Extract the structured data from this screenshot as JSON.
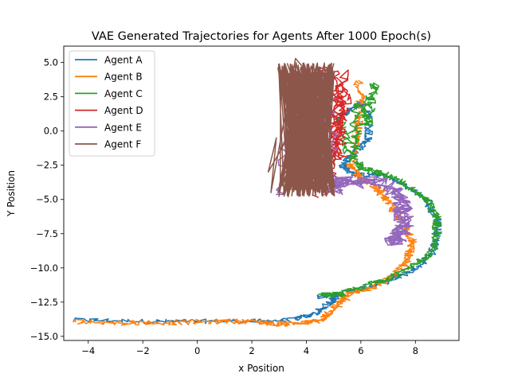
{
  "chart_data": {
    "type": "line",
    "title": "VAE Generated Trajectories for Agents After 1000 Epoch(s)",
    "xlabel": "x Position",
    "ylabel": "Y Position",
    "xlim": [
      -4.9,
      9.6
    ],
    "ylim": [
      -15.3,
      6.2
    ],
    "xticks": [
      -4,
      -2,
      0,
      2,
      4,
      6,
      8
    ],
    "yticks": [
      -15.0,
      -12.5,
      -10.0,
      -7.5,
      -5.0,
      -2.5,
      0.0,
      2.5,
      5.0
    ],
    "grid": false,
    "legend": "top-left",
    "series": [
      {
        "name": "Agent A",
        "color": "#1f77b4",
        "noise": 0.16,
        "points": [
          [
            -4.6,
            -13.8
          ],
          [
            -2,
            -13.9
          ],
          [
            0,
            -13.9
          ],
          [
            2,
            -13.9
          ],
          [
            3.5,
            -13.8
          ],
          [
            4.4,
            -13.3
          ],
          [
            4.9,
            -12.5
          ],
          [
            5.2,
            -11.9
          ],
          [
            4.5,
            -12.1
          ],
          [
            5.4,
            -11.8
          ],
          [
            6.3,
            -11.4
          ],
          [
            7.2,
            -10.8
          ],
          [
            8.0,
            -10.0
          ],
          [
            8.6,
            -9.0
          ],
          [
            8.8,
            -7.8
          ],
          [
            8.8,
            -6.5
          ],
          [
            8.5,
            -5.3
          ],
          [
            7.7,
            -4.0
          ],
          [
            6.8,
            -3.2
          ],
          [
            5.8,
            -3.2
          ],
          [
            5.3,
            -2.6
          ],
          [
            5.8,
            -1.5
          ],
          [
            6.3,
            -0.5
          ],
          [
            6.3,
            1.0
          ],
          [
            6.0,
            2.0
          ],
          [
            5.5,
            1.5
          ],
          [
            5.0,
            0.5
          ]
        ]
      },
      {
        "name": "Agent B",
        "color": "#ff7f0e",
        "noise": 0.18,
        "points": [
          [
            -4.6,
            -13.9
          ],
          [
            -3,
            -14.0
          ],
          [
            -1,
            -14.0
          ],
          [
            1,
            -13.9
          ],
          [
            2,
            -13.9
          ],
          [
            3,
            -14.1
          ],
          [
            4.0,
            -14.0
          ],
          [
            4.6,
            -13.8
          ],
          [
            5.1,
            -12.8
          ],
          [
            5.6,
            -11.9
          ],
          [
            6.4,
            -11.4
          ],
          [
            7.2,
            -10.6
          ],
          [
            7.7,
            -9.5
          ],
          [
            7.9,
            -8.2
          ],
          [
            7.6,
            -6.8
          ],
          [
            7.1,
            -5.5
          ],
          [
            6.6,
            -4.2
          ],
          [
            6.0,
            -3.5
          ],
          [
            5.6,
            -2.6
          ],
          [
            5.8,
            -1.0
          ],
          [
            5.9,
            0.5
          ],
          [
            6.0,
            2.0
          ],
          [
            5.9,
            3.7
          ]
        ]
      },
      {
        "name": "Agent C",
        "color": "#2ca02c",
        "noise": 0.18,
        "points": [
          [
            4.6,
            -12.0
          ],
          [
            5.3,
            -11.9
          ],
          [
            6.3,
            -11.2
          ],
          [
            7.2,
            -10.6
          ],
          [
            8.0,
            -9.8
          ],
          [
            8.6,
            -8.8
          ],
          [
            8.8,
            -7.5
          ],
          [
            8.8,
            -6.3
          ],
          [
            8.4,
            -5.0
          ],
          [
            7.6,
            -3.8
          ],
          [
            6.8,
            -3.1
          ],
          [
            6.1,
            -2.8
          ],
          [
            5.7,
            -2.0
          ],
          [
            5.8,
            -0.5
          ],
          [
            6.2,
            1.5
          ],
          [
            6.5,
            3.5
          ],
          [
            6.3,
            0.5
          ],
          [
            5.9,
            2.0
          ],
          [
            5.5,
            -1.5
          ],
          [
            5.2,
            1.0
          ]
        ]
      },
      {
        "name": "Agent D",
        "color": "#d62728",
        "noise": 0.22,
        "points": [
          [
            4.3,
            -4.8
          ],
          [
            4.5,
            2.0
          ],
          [
            4.7,
            4.8
          ],
          [
            4.9,
            -2.0
          ],
          [
            5.1,
            4.5
          ],
          [
            5.3,
            -2.0
          ],
          [
            5.2,
            3.5
          ],
          [
            5.0,
            -1.5
          ],
          [
            5.4,
            4.4
          ],
          [
            4.8,
            -4.6
          ],
          [
            5.3,
            0.0
          ],
          [
            5.5,
            3.0
          ]
        ]
      },
      {
        "name": "Agent E",
        "color": "#9467bd",
        "noise": 0.35,
        "points": [
          [
            3.1,
            -4.6
          ],
          [
            3.8,
            3.8
          ],
          [
            4.3,
            -4.2
          ],
          [
            4.6,
            4.6
          ],
          [
            5.0,
            -4.5
          ],
          [
            5.2,
            -3.5
          ],
          [
            5.8,
            -3.9
          ],
          [
            6.5,
            -3.6
          ],
          [
            7.2,
            -4.2
          ],
          [
            7.5,
            -5.2
          ],
          [
            7.6,
            -6.4
          ],
          [
            7.4,
            -7.6
          ],
          [
            7.2,
            -8.2
          ],
          [
            7.6,
            -7.0
          ],
          [
            7.5,
            -5.6
          ]
        ]
      },
      {
        "name": "Agent F",
        "color": "#8c564b",
        "noise": 0.0,
        "bandLeft": 2.95,
        "bandRight": 5.05,
        "extraPoints": [
          [
            2.6,
            -3.0
          ],
          [
            2.9,
            -0.5
          ],
          [
            2.7,
            -4.5
          ],
          [
            3.6,
            5.3
          ],
          [
            3.9,
            4.6
          ]
        ]
      }
    ]
  }
}
